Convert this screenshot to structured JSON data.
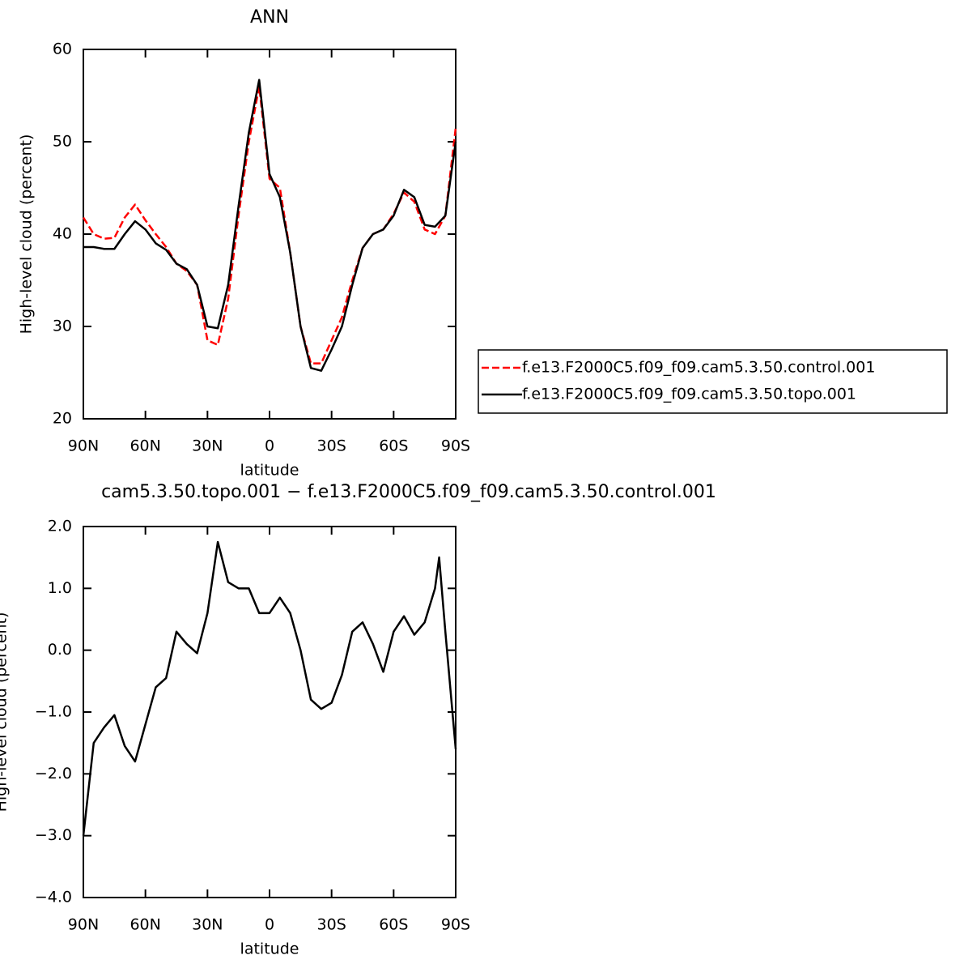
{
  "chart_data": [
    {
      "type": "line",
      "title": "ANN",
      "xlabel": "latitude",
      "ylabel": "High-level cloud (percent)",
      "x": [
        90,
        85,
        80,
        75,
        70,
        65,
        60,
        55,
        50,
        45,
        40,
        35,
        30,
        25,
        20,
        15,
        10,
        5,
        0,
        -5,
        -10,
        -15,
        -20,
        -25,
        -30,
        -35,
        -40,
        -45,
        -50,
        -55,
        -60,
        -65,
        -70,
        -75,
        -80,
        -85,
        -90
      ],
      "xlim": [
        90,
        -90
      ],
      "xticks": [
        {
          "value": 90,
          "label": "90N"
        },
        {
          "value": 60,
          "label": "60N"
        },
        {
          "value": 30,
          "label": "30N"
        },
        0,
        {
          "value": -30,
          "label": "30S"
        },
        {
          "value": -60,
          "label": "60S"
        },
        {
          "value": -90,
          "label": "90S"
        }
      ],
      "ylim": [
        20,
        60
      ],
      "yticks": [
        20,
        30,
        40,
        50,
        60
      ],
      "legend": "right",
      "series": [
        {
          "name": "f.e13.F2000C5.f09_f09.cam5.3.50.control.001",
          "color": "#ff0000",
          "dash": true,
          "values": [
            41.8,
            40,
            39.5,
            39.6,
            41.8,
            43.2,
            41.5,
            40,
            38.6,
            36.8,
            36,
            34.5,
            28.5,
            28,
            33,
            42,
            50,
            56,
            46,
            45,
            38,
            30,
            26,
            26,
            28.5,
            31,
            35,
            38.5,
            40,
            40.5,
            42.2,
            44.5,
            43.5,
            40.5,
            40,
            42,
            51.5
          ]
        },
        {
          "name": "f.e13.F2000C5.f09_f09.cam5.3.50.topo.001",
          "color": "#000000",
          "dash": false,
          "values": [
            38.6,
            38.6,
            38.4,
            38.4,
            40,
            41.4,
            40.5,
            39,
            38.3,
            36.8,
            36.2,
            34.5,
            30,
            29.8,
            34.5,
            43,
            51,
            56.7,
            46.5,
            44,
            38,
            30,
            25.5,
            25.2,
            27.5,
            30,
            34.5,
            38.5,
            40,
            40.5,
            42,
            44.8,
            44,
            41,
            40.8,
            42,
            50
          ]
        }
      ]
    },
    {
      "type": "line",
      "title": "cam5.3.50.topo.001 − f.e13.F2000C5.f09_f09.cam5.3.50.control.001",
      "xlabel": "latitude",
      "ylabel": "High-level cloud (percent)",
      "x": [
        90,
        85,
        80,
        75,
        70,
        65,
        60,
        55,
        50,
        45,
        40,
        35,
        30,
        25,
        20,
        15,
        10,
        5,
        0,
        -5,
        -10,
        -15,
        -20,
        -25,
        -30,
        -35,
        -40,
        -45,
        -50,
        -55,
        -60,
        -65,
        -70,
        -75,
        -80,
        -82,
        -85,
        -90
      ],
      "xlim": [
        90,
        -90
      ],
      "xticks": [
        {
          "value": 90,
          "label": "90N"
        },
        {
          "value": 60,
          "label": "60N"
        },
        {
          "value": 30,
          "label": "30N"
        },
        0,
        {
          "value": -30,
          "label": "30S"
        },
        {
          "value": -60,
          "label": "60S"
        },
        {
          "value": -90,
          "label": "90S"
        }
      ],
      "ylim": [
        -4,
        2
      ],
      "yticks": [
        {
          "value": -4,
          "label": "−4.0"
        },
        {
          "value": -3,
          "label": "−3.0"
        },
        {
          "value": -2,
          "label": "−2.0"
        },
        {
          "value": -1,
          "label": "−1.0"
        },
        {
          "value": 0,
          "label": "0.0"
        },
        {
          "value": 1,
          "label": "1.0"
        },
        {
          "value": 2,
          "label": "2.0"
        }
      ],
      "series": [
        {
          "color": "#000000",
          "dash": false,
          "values": [
            -3.0,
            -1.5,
            -1.25,
            -1.05,
            -1.55,
            -1.8,
            -1.2,
            -0.6,
            -0.45,
            0.3,
            0.1,
            -0.05,
            0.6,
            1.75,
            1.1,
            1.0,
            1.0,
            0.6,
            0.6,
            0.85,
            0.6,
            0.0,
            -0.8,
            -0.95,
            -0.85,
            -0.4,
            0.3,
            0.45,
            0.1,
            -0.35,
            0.3,
            0.55,
            0.25,
            0.45,
            1.0,
            1.5,
            0.3,
            -1.6
          ]
        }
      ]
    }
  ]
}
